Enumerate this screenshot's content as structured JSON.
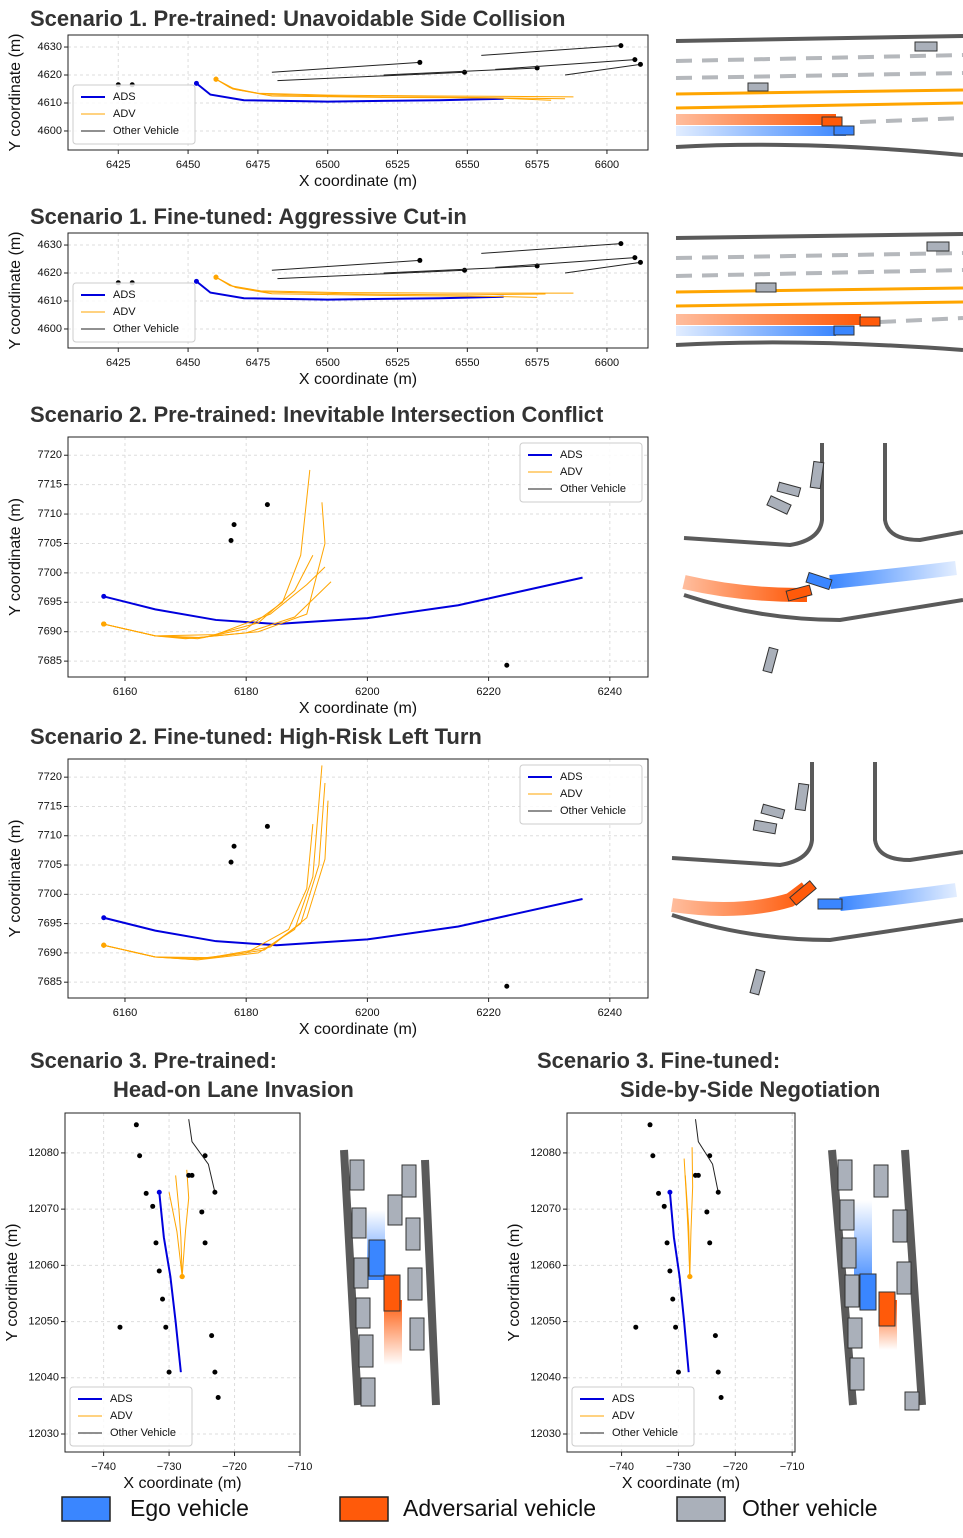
{
  "chart_data": [
    {
      "type": "line",
      "title": "Scenario 1. Pre-trained: Unavoidable Side Collision",
      "xlabel": "X coordinate (m)",
      "ylabel": "Y coordinate (m)",
      "xlim": [
        6407,
        6614.7
      ],
      "ylim": [
        4593.2,
        4634.3
      ],
      "xticks": [
        6425,
        6450,
        6475,
        6500,
        6525,
        6550,
        6575,
        6600
      ],
      "yticks": [
        4600,
        4610,
        4620,
        4630
      ],
      "grid": true,
      "legend": "lower left",
      "series": [
        {
          "name": "ADS",
          "color": "#0000dd",
          "x": [
            6453,
            6458,
            6470,
            6500,
            6540,
            6563
          ],
          "values": [
            4617,
            4613,
            4611,
            4610.5,
            4611,
            4611.5
          ]
        },
        {
          "name": "ADV",
          "color": "#ffa500",
          "x": [
            6460,
            6465,
            6475,
            6500,
            6540,
            6588,
            null,
            6460,
            6466,
            6478,
            6510,
            6550,
            6585,
            null,
            6460,
            6467,
            6480,
            6520,
            6560,
            6580
          ],
          "values": [
            4618.5,
            4615.5,
            4613.5,
            4612.8,
            4612.5,
            4612.2,
            null,
            4618.5,
            4615,
            4613,
            4612.3,
            4612,
            4611.5,
            null,
            4618.5,
            4614.8,
            4612.5,
            4612,
            4611.8,
            4611
          ]
        },
        {
          "name": "Other Vehicle",
          "color": "#222222",
          "x": [
            6425,
            null,
            6430,
            null,
            6533,
            6480,
            null,
            6549,
            6482,
            null,
            6575,
            6520,
            null,
            6605,
            6555,
            null,
            6610,
            6560,
            null,
            6612,
            6585
          ],
          "values": [
            4616.5,
            null,
            4616.5,
            null,
            4624.5,
            4621,
            null,
            4621,
            4618,
            null,
            4622.5,
            4620,
            null,
            4630.5,
            4627,
            null,
            4625.5,
            4622,
            null,
            4623.8,
            4620
          ]
        }
      ]
    },
    {
      "type": "line",
      "title": "Scenario 1. Fine-tuned: Aggressive Cut-in",
      "xlabel": "X coordinate (m)",
      "ylabel": "Y coordinate (m)",
      "xlim": [
        6407,
        6614.7
      ],
      "ylim": [
        4593.2,
        4634.3
      ],
      "xticks": [
        6425,
        6450,
        6475,
        6500,
        6525,
        6550,
        6575,
        6600
      ],
      "yticks": [
        4600,
        4610,
        4620,
        4630
      ],
      "grid": true,
      "legend": "lower left",
      "series": [
        {
          "name": "ADS",
          "color": "#0000dd",
          "x": [
            6453,
            6458,
            6470,
            6500,
            6540,
            6563
          ],
          "values": [
            4617,
            4613,
            4611,
            4610.5,
            4611,
            4611.5
          ]
        },
        {
          "name": "ADV",
          "color": "#ffa500",
          "x": [
            6460,
            6466,
            6478,
            6510,
            6550,
            6578,
            null,
            6460,
            6465,
            6476,
            6505,
            6545,
            6588,
            null,
            6460,
            6467,
            6480,
            6520,
            6560,
            6575
          ],
          "values": [
            4618.5,
            4615.2,
            4613.2,
            4612.5,
            4612.2,
            4612.5,
            null,
            4618.5,
            4615.5,
            4613.6,
            4613,
            4612.8,
            4612.8,
            null,
            4618.5,
            4614.8,
            4612.6,
            4612,
            4611.6,
            4611.3
          ]
        },
        {
          "name": "Other Vehicle",
          "color": "#222222",
          "x": [
            6425,
            null,
            6430,
            null,
            6533,
            6480,
            null,
            6549,
            6482,
            null,
            6575,
            6520,
            null,
            6605,
            6555,
            null,
            6610,
            6560,
            null,
            6612,
            6585
          ],
          "values": [
            4616.5,
            null,
            4616.5,
            null,
            4624.5,
            4621,
            null,
            4621,
            4618,
            null,
            4622.5,
            4620,
            null,
            4630.5,
            4627,
            null,
            4625.5,
            4622,
            null,
            4623.8,
            4620
          ]
        }
      ]
    },
    {
      "type": "line",
      "title": "Scenario 2. Pre-trained: Inevitable Intersection Conflict",
      "xlabel": "X coordinate (m)",
      "ylabel": "Y coordinate (m)",
      "xlim": [
        6150.6,
        6246.3
      ],
      "ylim": [
        7682.3,
        7723.1
      ],
      "xticks": [
        6160,
        6180,
        6200,
        6220,
        6240
      ],
      "yticks": [
        7685,
        7690,
        7695,
        7700,
        7705,
        7710,
        7715,
        7720
      ],
      "grid": true,
      "legend": "upper right",
      "series": [
        {
          "name": "ADS",
          "color": "#0000dd",
          "x": [
            6156.5,
            6165,
            6175,
            6185,
            6200,
            6215,
            6235.5
          ],
          "values": [
            7696,
            7693.8,
            7692,
            7691.3,
            7692.3,
            7694.5,
            7699.2
          ]
        },
        {
          "name": "ADV",
          "color": "#ffa500",
          "x": [
            6156.5,
            6165,
            6172,
            6180,
            6186,
            6189,
            6190.5,
            null,
            6156.5,
            6165,
            6173,
            6182,
            6188,
            6191,
            null,
            6156.5,
            6165,
            6175,
            6184,
            6190,
            6193,
            null,
            6156.5,
            6165,
            6170,
            6180,
            6188,
            6194,
            null,
            6156.5,
            6165,
            6172,
            6182,
            6190,
            6193,
            6192.5
          ],
          "values": [
            7691.3,
            7689.3,
            7688.8,
            7690.5,
            7695,
            7703,
            7717.5,
            null,
            7691.3,
            7689.3,
            7689,
            7691.5,
            7697,
            7703,
            null,
            7691.3,
            7689.3,
            7689.5,
            7693,
            7698,
            7701,
            null,
            7691.3,
            7689.3,
            7688.8,
            7689.8,
            7692.5,
            7698.5,
            null,
            7691.3,
            7689.3,
            7689,
            7690,
            7693,
            7705,
            7712
          ]
        },
        {
          "name": "Other Vehicle",
          "color": "#222222",
          "x": [
            6177.5,
            null,
            6178,
            null,
            6183.5,
            null,
            6223
          ],
          "values": [
            7705.5,
            null,
            7708.2,
            null,
            7711.6,
            null,
            7684.3
          ]
        }
      ]
    },
    {
      "type": "line",
      "title": "Scenario 2. Fine-tuned: High-Risk Left Turn",
      "xlabel": "X coordinate (m)",
      "ylabel": "Y coordinate (m)",
      "xlim": [
        6150.6,
        6246.3
      ],
      "ylim": [
        7682.3,
        7723.1
      ],
      "xticks": [
        6160,
        6180,
        6200,
        6220,
        6240
      ],
      "yticks": [
        7685,
        7690,
        7695,
        7700,
        7705,
        7710,
        7715,
        7720
      ],
      "grid": true,
      "legend": "upper right",
      "series": [
        {
          "name": "ADS",
          "color": "#0000dd",
          "x": [
            6156.5,
            6165,
            6175,
            6185,
            6200,
            6215,
            6235.5
          ],
          "values": [
            7696,
            7693.8,
            7692,
            7691.3,
            7692.3,
            7694.5,
            7699.2
          ]
        },
        {
          "name": "ADV",
          "color": "#ffa500",
          "x": [
            6156.5,
            6165,
            6172,
            6182,
            6188,
            6191,
            6192.5,
            null,
            6156.5,
            6165,
            6173,
            6183,
            6189,
            6192,
            6193,
            null,
            6156.5,
            6165,
            6174,
            6184,
            6190,
            6193,
            6193.5,
            null,
            6156.5,
            6165,
            6171,
            6180,
            6187,
            6190,
            6191
          ],
          "values": [
            7691.3,
            7689.3,
            7688.8,
            7690,
            7694,
            7703,
            7722,
            null,
            7691.3,
            7689.3,
            7689,
            7690.5,
            7695,
            7705,
            7719,
            null,
            7691.3,
            7689.3,
            7689.2,
            7691,
            7696,
            7706,
            7716,
            null,
            7691.3,
            7689.3,
            7688.9,
            7690,
            7694,
            7701,
            7712
          ]
        },
        {
          "name": "Other Vehicle",
          "color": "#222222",
          "x": [
            6177.5,
            null,
            6178,
            null,
            6183.5,
            null,
            6223
          ],
          "values": [
            7705.5,
            null,
            7708.2,
            null,
            7711.6,
            null,
            7684.3
          ]
        }
      ]
    },
    {
      "type": "line",
      "title": [
        "Scenario 3. Pre-trained:",
        "Head-on Lane Invasion"
      ],
      "xlabel": "X coordinate (m)",
      "ylabel": "Y coordinate (m)",
      "xlim": [
        -745.9,
        -710
      ],
      "ylim": [
        12026.8,
        12087.1
      ],
      "xticks": [
        {
          "value": -740,
          "label": "−740"
        },
        {
          "value": -730,
          "label": "−730"
        },
        {
          "value": -720,
          "label": "−720"
        },
        {
          "value": -710,
          "label": "−710"
        }
      ],
      "yticks": [
        12030,
        12040,
        12050,
        12060,
        12070,
        12080
      ],
      "grid": true,
      "legend": "lower left",
      "series": [
        {
          "name": "ADS",
          "color": "#0000dd",
          "x": [
            -731.5,
            -730.8,
            -729.8,
            -729,
            -728.2
          ],
          "values": [
            12073,
            12065,
            12058,
            12050,
            12041
          ]
        },
        {
          "name": "ADV",
          "color": "#ffa500",
          "x": [
            -728,
            -728.2,
            -728.5,
            -729,
            null,
            -728,
            -727.5,
            -727,
            -727.3,
            null,
            -728,
            -728.8,
            -730
          ],
          "values": [
            12058,
            12065,
            12070,
            12076,
            null,
            12058,
            12066,
            12072,
            12077,
            null,
            12058,
            12066,
            12073
          ]
        },
        {
          "name": "Other Vehicle",
          "color": "#222222",
          "x": [
            -735,
            null,
            -734.5,
            null,
            -727,
            null,
            -724.5,
            null,
            -733.5,
            null,
            -726.5,
            null,
            -732.5,
            null,
            -725,
            null,
            -732,
            null,
            -724.5,
            null,
            -731.5,
            null,
            -731,
            null,
            -737.5,
            null,
            -730.5,
            null,
            -723.5,
            null,
            -730,
            null,
            -723,
            null,
            -722.5,
            null,
            -723,
            -724,
            -726.5,
            -727
          ],
          "values": [
            12085,
            null,
            12079.5,
            null,
            12076,
            null,
            12079.5,
            null,
            12072.8,
            null,
            12076,
            null,
            12070.5,
            null,
            12069.5,
            null,
            12064,
            null,
            12064,
            null,
            12059,
            null,
            12054,
            null,
            12049,
            null,
            12049,
            null,
            12047.5,
            null,
            12041,
            null,
            12041,
            null,
            12036.5,
            null,
            12073,
            12078,
            12082,
            12086
          ]
        }
      ]
    },
    {
      "type": "line",
      "title": [
        "Scenario 3. Fine-tuned:",
        "Side-by-Side Negotiation"
      ],
      "xlabel": "X coordinate (m)",
      "ylabel": "Y coordinate (m)",
      "xlim": [
        -749.6,
        -709.5
      ],
      "ylim": [
        12026.8,
        12087.1
      ],
      "xticks": [
        {
          "value": -740,
          "label": "−740"
        },
        {
          "value": -730,
          "label": "−730"
        },
        {
          "value": -720,
          "label": "−720"
        },
        {
          "value": -710,
          "label": "−710"
        }
      ],
      "yticks": [
        12030,
        12040,
        12050,
        12060,
        12070,
        12080
      ],
      "grid": true,
      "legend": "lower left",
      "series": [
        {
          "name": "ADS",
          "color": "#0000dd",
          "x": [
            -731.5,
            -730.8,
            -729.8,
            -729,
            -728.2
          ],
          "values": [
            12073,
            12065,
            12058,
            12050,
            12041
          ]
        },
        {
          "name": "ADV",
          "color": "#ffa500",
          "x": [
            -728,
            -728.3,
            -728.6,
            -729,
            null,
            -728,
            -727.8,
            -727.5,
            -727.6,
            null,
            -728,
            -728.2,
            -728.8
          ],
          "values": [
            12058,
            12066,
            12072,
            12079,
            null,
            12058,
            12066,
            12074,
            12081,
            null,
            12058,
            12067,
            12076
          ]
        },
        {
          "name": "Other Vehicle",
          "color": "#222222",
          "x": [
            -735,
            null,
            -734.5,
            null,
            -727,
            null,
            -724.5,
            null,
            -733.5,
            null,
            -726.5,
            null,
            -732.5,
            null,
            -725,
            null,
            -732,
            null,
            -724.5,
            null,
            -731.5,
            null,
            -731,
            null,
            -737.5,
            null,
            -730.5,
            null,
            -723.5,
            null,
            -730,
            null,
            -723,
            null,
            -722.5,
            null,
            -723,
            -724,
            -726.5,
            -727
          ],
          "values": [
            12085,
            null,
            12079.5,
            null,
            12076,
            null,
            12079.5,
            null,
            12072.8,
            null,
            12076,
            null,
            12070.5,
            null,
            12069.5,
            null,
            12064,
            null,
            12064,
            null,
            12059,
            null,
            12054,
            null,
            12049,
            null,
            12049,
            null,
            12047.5,
            null,
            12041,
            null,
            12041,
            null,
            12036.5,
            null,
            12073,
            12078,
            12082,
            12086
          ]
        }
      ]
    }
  ],
  "figure_legend": [
    {
      "label": "Ego vehicle",
      "color": "#3a86ff"
    },
    {
      "label": "Adversarial vehicle",
      "color": "#ff5a0a"
    },
    {
      "label": "Other vehicle",
      "color": "#aab0ba"
    }
  ]
}
